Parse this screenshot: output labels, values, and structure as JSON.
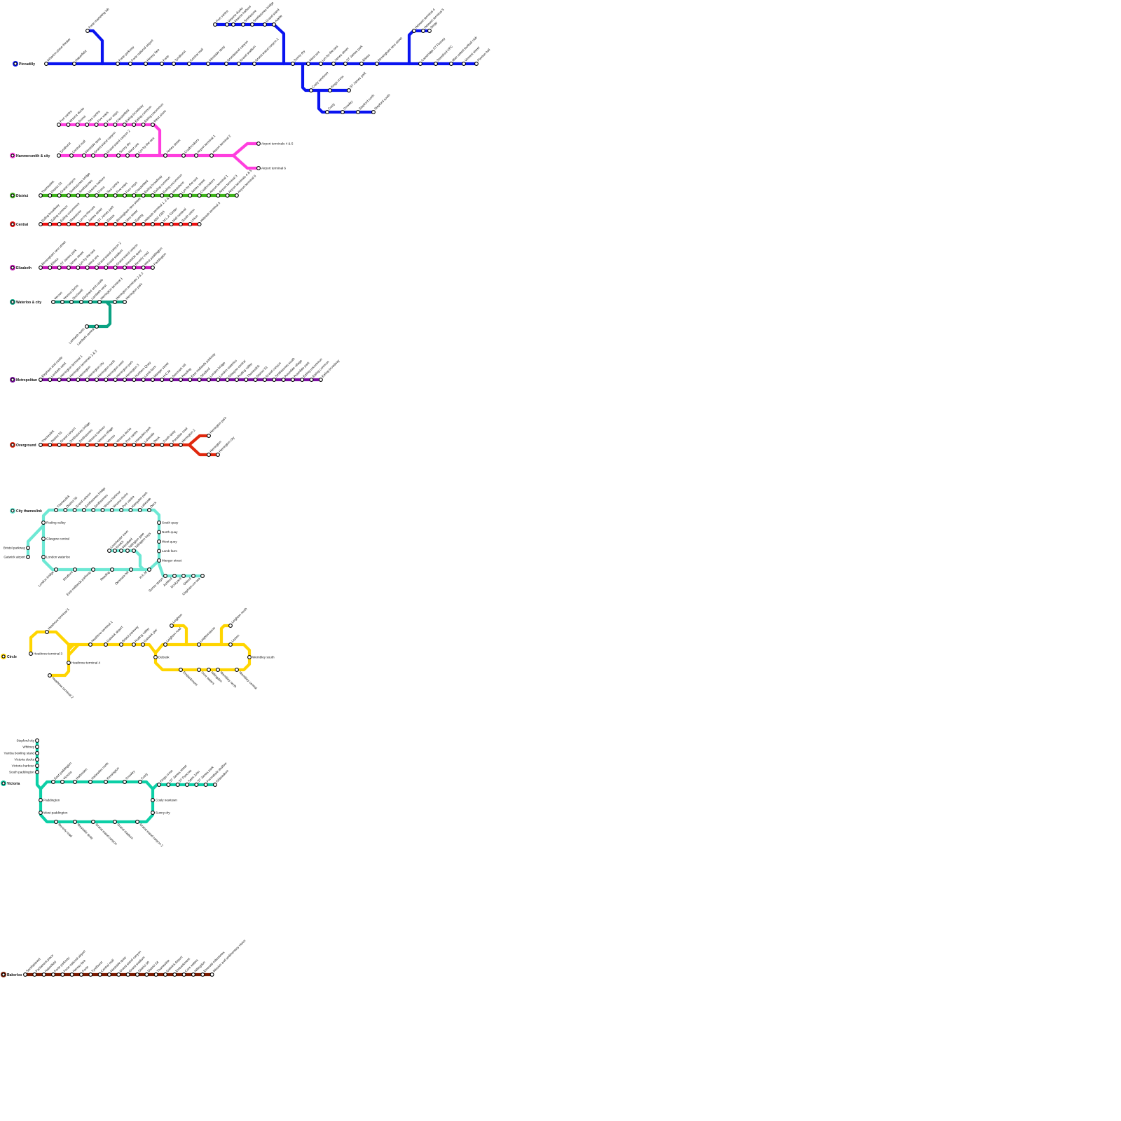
{
  "lines": [
    {
      "id": "piccadilly",
      "name": "Piccadilly",
      "color": "#0a14f0",
      "branches": [
        {
          "stations": [
            "Wharton place theater",
            "Haberfield",
            "Forte parkway",
            "Forte national airport",
            "Heresy fare",
            "Forte",
            "Tyndhurst",
            "Central mall",
            "Westside quay",
            "Grandstand canyon",
            "Grand stadium",
            "Grand stand canyon 2",
            "Sunny dry",
            "West sea",
            "Lyn-by-the-sea",
            "James street",
            "ST James park",
            "Ettasa",
            "Birmingham new street",
            "Cambridge ST Peavey",
            "Stansford UFC",
            "Man united football club",
            "Vincent street",
            "Plexton hall"
          ]
        },
        {
          "stations": [
            "Forte marketing lab"
          ]
        },
        {
          "stations": [
            "Port vantra",
            "Vessna docks",
            "Vessna harbour",
            "Smithstone",
            "Smithstones bridge",
            "Grand stand",
            "Adelle"
          ]
        },
        {
          "stations": [
            "Cosly newtown",
            "Kings cross",
            "ST James park"
          ]
        },
        {
          "stations": [
            "Cosly",
            "Crowley",
            "Stepford north",
            "Stepford south"
          ]
        },
        {
          "stations": [
            "Heleash terminal 4",
            "Heleash terminal 5",
            "Dingo"
          ]
        }
      ]
    },
    {
      "id": "hammersmith",
      "name": "Hammersmith & city",
      "color": "#ff3ede",
      "branches": [
        {
          "stations": [
            "Tyndhurst",
            "Central mall",
            "Westside quay",
            "Grand stand canyon",
            "Grand stand canyon 2",
            "Sunny dry",
            "West sea",
            "Lyn-by-the-sea",
            "James street",
            "Coalbrookers",
            "Airport terminal 1",
            "Airport terminal 2"
          ]
        },
        {
          "stations": [
            "Port vantra",
            "Vessna docks",
            "Doma",
            "Sea vantra",
            "Five ways",
            "Four ways",
            "Chesterfield",
            "Ealing broadway",
            "Ealing common",
            "Ealing uncommon",
            "West shore"
          ]
        },
        {
          "stations": [
            "Airport terminals 4 & 5"
          ]
        },
        {
          "stations": [
            "Airport terminal 6"
          ]
        }
      ]
    },
    {
      "id": "district",
      "name": "District",
      "color": "#3fb41c",
      "branches": [
        {
          "stations": [
            "Thameslink",
            "District 53",
            "Grand canyon",
            "Smithstones bridge",
            "Smithstones",
            "Vessna harbour",
            "Doma",
            "Sea vantra",
            "Five ways",
            "Four ways",
            "Chesterfield",
            "Ealing broadway",
            "Ealing common",
            "Ealing uncommon",
            "Westshore",
            "Lyn-by-the-sea",
            "James street",
            "Coalbrookers",
            "Airport terminal 1",
            "Airport terminal 3",
            "Airport terminals 4 & 5",
            "Airport terminal 6"
          ]
        }
      ]
    },
    {
      "id": "central",
      "name": "Central",
      "color": "#f01010",
      "branches": [
        {
          "stations": [
            "Ealing broadway",
            "Ealing common",
            "Ealing uncommon",
            "Westshore",
            "Lyn-by-the-sea",
            "James street",
            "ST James park",
            "Ettasa",
            "Birmingham new street",
            "Vere street",
            "Epping",
            "Heleash terminal 1, 2 & 3",
            "ABC CBN",
            "M.L.A Center",
            "Mall centeral",
            "South union",
            "Union",
            "Heleash terminal 5"
          ]
        }
      ]
    },
    {
      "id": "elizabeth",
      "name": "Elizabeth",
      "color": "#c81ab8",
      "branches": [
        {
          "stations": [
            "Birmingham new street",
            "Ettasa",
            "ST James park",
            "James street",
            "Lyn-by-the-sea",
            "West sea",
            "Grand stand canyon 2",
            "Grand stadium",
            "Grand stand canyon",
            "Westside quay",
            "Beverly road",
            "West paddington",
            "Paddington"
          ]
        }
      ]
    },
    {
      "id": "waterloo",
      "name": "Waterloo & city",
      "color": "#0aa283",
      "branches": [
        {
          "stations": [
            "Veroso",
            "Vessna docks",
            "Stockwell",
            "Elephant and castle",
            "Lambeth west",
            "Herrington terminal 1",
            "Herrington terminals 2 & 3",
            "Herrington park"
          ]
        },
        {
          "stations": [
            "Lambeth north",
            "Lambeth central"
          ]
        }
      ]
    },
    {
      "id": "metropolitan",
      "name": "Metropolitan",
      "color": "#7a0ca0",
      "branches": [
        {
          "stations": [
            "Elephant and castle",
            "Lambeth west",
            "Herrington terminal 1",
            "Herrington terminals 2 & 3",
            "Herrington",
            "Herrington city",
            "Herrington north",
            "Herrington west",
            "Herrington park",
            "Herrington 3",
            "Northern Quay",
            "Lamb farm",
            "Manger street",
            "H.C.M",
            "Denmark hill",
            "Reading",
            "East midlands parkway",
            "Stratford",
            "London bridge",
            "London waterloo",
            "Glasgow central",
            "Roding valley",
            "Thameslink",
            "District 53",
            "Grand canyon",
            "Smithstones south",
            "Rosedale village",
            "Rosedale park",
            "Ealing uncommon",
            "Ealing common",
            "Ealing broadway"
          ]
        }
      ]
    },
    {
      "id": "overground",
      "name": "Overground",
      "color": "#e0280e",
      "branches": [
        {
          "stations": [
            "Thameslink",
            "District 53",
            "Grand canyon",
            "Smithstones bridge",
            "Smithstones",
            "Vessna harbour",
            "Vessna village",
            "Veroso",
            "Vessna docks",
            "Port vantra",
            "Hampden park",
            "Lakeside",
            "Deck",
            "South quay",
            "Paradise road",
            "Herrington 2"
          ]
        },
        {
          "stations": [
            "Herrington park"
          ]
        },
        {
          "stations": [
            "Herrington",
            "Herrington city"
          ]
        }
      ]
    },
    {
      "id": "thameslink",
      "name": "City thameslink",
      "color": "#6de8d4",
      "branches": [
        {
          "stations": [
            "Thameslink",
            "District 53",
            "Grand canyon",
            "Smithstones bridge",
            "Smithstones",
            "Vessna harbour",
            "Vessna docks",
            "Port vantra",
            "Hampden park",
            "Lakeside",
            "Deck"
          ]
        },
        {
          "stations": [
            "South quay",
            "North quay",
            "West quay",
            "Lamb farm",
            "Manger street"
          ]
        },
        {
          "stations": [
            "Roding valley",
            "Glasgow central",
            "London waterloo"
          ]
        },
        {
          "stations": [
            "London bridge",
            "Stratford",
            "East midlands parkway",
            "Reading",
            "Denmark hill",
            "H.C.M"
          ]
        },
        {
          "stations": [
            "Bristol parkway",
            "Gatwick airport"
          ]
        },
        {
          "stations": [
            "Surrey quays",
            "Ashford",
            "Dockyard",
            "Oxford",
            "Clapham-on-sea"
          ]
        },
        {
          "stations": [
            "Lowchester town",
            "Orwick",
            "Westfield",
            "Tallington gate",
            "Tallington bays"
          ]
        }
      ]
    },
    {
      "id": "circle",
      "name": "Circle",
      "color": "#ffd500",
      "branches": [
        {
          "stations": [
            "Heathrow terminal 1",
            "Gatwick airport",
            "Bristol parkway",
            "Roding valley",
            "Gatwick pier"
          ]
        },
        {
          "stations": [
            "Heathrow terminal 3"
          ]
        },
        {
          "stations": [
            "Heathrow terminal 5"
          ]
        },
        {
          "stations": [
            "Heathrow terminal 4"
          ]
        },
        {
          "stations": [
            "Heathrow terminal 2"
          ]
        },
        {
          "stations": [
            "Debusk"
          ]
        },
        {
          "stations": [
            "Leighton road",
            "Leightonstone",
            "Leyton"
          ]
        },
        {
          "stations": [
            "Wembley south"
          ]
        },
        {
          "stations": [
            "Embankment",
            "Core waters",
            "Hillingdon",
            "Wembley north",
            "Wembley central"
          ]
        },
        {
          "stations": [
            "Leighton"
          ]
        },
        {
          "stations": [
            "Leighton north"
          ]
        }
      ]
    },
    {
      "id": "victoria",
      "name": "Victoria",
      "color": "#0ccfa6",
      "branches": [
        {
          "stations": [
            "Stepford city",
            "Whitney",
            "Yamba bowling stand",
            "Victoria docks",
            "Victoria harbour",
            "South paddington"
          ]
        },
        {
          "stations": [
            "East paddington",
            "Victoria",
            "Harlesden",
            "Harlesden north",
            "Kensington",
            "Crowley",
            "Cosly"
          ]
        },
        {
          "stations": [
            "Cosly newtown",
            "Sunny dry"
          ]
        },
        {
          "stations": [
            "Paddington",
            "West paddington"
          ]
        },
        {
          "stations": [
            "Beverly road",
            "Westside quay",
            "Grand stand canyon",
            "Grand stadium",
            "Grand stand canyon 2"
          ]
        },
        {
          "stations": [
            "Kings cross",
            "ST James street",
            "ST Pancras",
            "Saint John",
            "ST James park",
            "Formabale shallow",
            "Oldstadium"
          ]
        }
      ]
    },
    {
      "id": "bakerloo",
      "name": "Bakerloo",
      "color": "#7a1a00",
      "branches": [
        {
          "stations": [
            "Sandsplaned",
            "Parliament place",
            "Haberfield",
            "Forte parkway",
            "Forte national airport",
            "Heresy fare",
            "Forte",
            "Tyndhurst",
            "Central mall",
            "Westside quay",
            "Grand stand canyon",
            "Grand stadium",
            "District 50",
            "District 54",
            "Thameslink",
            "Gatwick Airport",
            "Embankment",
            "Core waters",
            "Hillingdon",
            "Emerald milestones",
            "Mission and sedimentary vision"
          ]
        }
      ]
    }
  ]
}
